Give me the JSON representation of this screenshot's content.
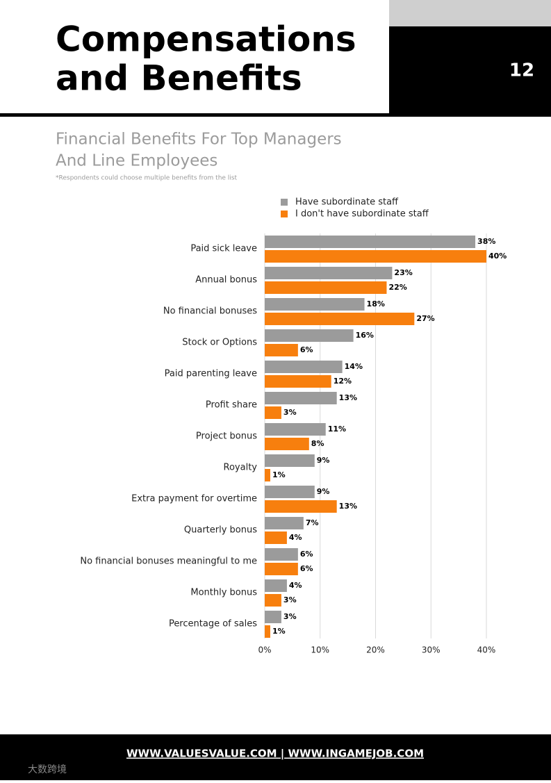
{
  "header": {
    "title_lines": [
      "Compensations",
      "and Benefits"
    ],
    "page_number": "12"
  },
  "chart_data": {
    "type": "bar",
    "orientation": "horizontal",
    "title_lines": [
      "Financial Benefits For Top Managers",
      "And Line Employees"
    ],
    "note": "*Respondents could choose multiple benefits from the list",
    "categories": [
      "Paid sick leave",
      "Annual bonus",
      "No financial bonuses",
      "Stock or Options",
      "Paid parenting leave",
      "Profit share",
      "Project bonus",
      "Royalty",
      "Extra payment for overtime",
      "Quarterly bonus",
      "No financial bonuses meaningful to me",
      "Monthly bonus",
      "Percentage of sales"
    ],
    "series": [
      {
        "name": "Have subordinate staff",
        "color": "#9b9b9b",
        "values": [
          38,
          23,
          18,
          16,
          14,
          13,
          11,
          9,
          9,
          7,
          6,
          4,
          3
        ],
        "value_labels": [
          "38%",
          "23%",
          "18%",
          "16%",
          "14%",
          "13%",
          "11%",
          "9%",
          "9%",
          "7%",
          "6%",
          "4%",
          "3%"
        ]
      },
      {
        "name": "I don't have subordinate staff",
        "color": "#f77f0e",
        "values": [
          40,
          22,
          27,
          6,
          12,
          3,
          8,
          1,
          13,
          4,
          6,
          3,
          1
        ],
        "value_labels": [
          "40%",
          "22%",
          "27%",
          "6%",
          "12%",
          "3%",
          "8%",
          "1%",
          "13%",
          "4%",
          "6%",
          "3%",
          "1%"
        ]
      }
    ],
    "xlim": [
      0,
      40
    ],
    "xticks": [
      {
        "value": 0,
        "label": "0%"
      },
      {
        "value": 10,
        "label": "10%"
      },
      {
        "value": 20,
        "label": "20%"
      },
      {
        "value": 30,
        "label": "30%"
      },
      {
        "value": 40,
        "label": "40%"
      }
    ],
    "grid": true
  },
  "footer": {
    "links": "WWW.VALUESVALUE.COM | WWW.INGAMEJOB.COM",
    "watermark": "大数跨境"
  }
}
